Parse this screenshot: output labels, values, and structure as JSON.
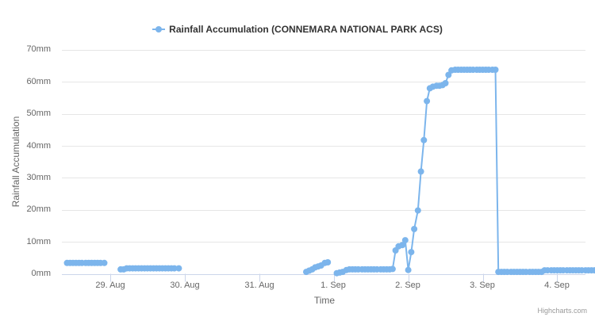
{
  "legend": {
    "label": "Rainfall Accumulation (CONNEMARA NATIONAL PARK ACS)",
    "color": "#7cb5ec"
  },
  "y_axis": {
    "title": "Rainfall Accumulation",
    "ticks": [
      "0mm",
      "10mm",
      "20mm",
      "30mm",
      "40mm",
      "50mm",
      "60mm",
      "70mm"
    ]
  },
  "x_axis": {
    "title": "Time",
    "ticks": [
      "29. Aug",
      "30. Aug",
      "31. Aug",
      "1. Sep",
      "2. Sep",
      "3. Sep",
      "4. Sep"
    ]
  },
  "credits": "Highcharts.com",
  "chart_data": {
    "type": "line",
    "title": "",
    "xlabel": "Time",
    "ylabel": "Rainfall Accumulation",
    "ylim": [
      0,
      70
    ],
    "y_unit": "mm",
    "grid": true,
    "legend_position": "top",
    "x_tick_labels": [
      "29. Aug",
      "30. Aug",
      "31. Aug",
      "1. Sep",
      "2. Sep",
      "3. Sep",
      "4. Sep"
    ],
    "series": [
      {
        "name": "Rainfall Accumulation (CONNEMARA NATIONAL PARK ACS)",
        "color": "#7cb5ec",
        "segments": [
          {
            "x_days": [
              -0.58,
              -0.54,
              -0.5,
              -0.46,
              -0.42,
              -0.38,
              -0.33,
              -0.29,
              -0.25,
              -0.21,
              -0.17,
              -0.13,
              -0.08
            ],
            "values": [
              3.4,
              3.4,
              3.4,
              3.4,
              3.4,
              3.4,
              3.4,
              3.4,
              3.4,
              3.4,
              3.4,
              3.4,
              3.4
            ]
          },
          {
            "x_days": [
              0.14,
              0.18,
              0.22,
              0.26,
              0.3,
              0.34,
              0.38,
              0.42,
              0.46,
              0.5,
              0.54,
              0.58,
              0.62,
              0.66,
              0.7,
              0.74,
              0.78,
              0.82,
              0.86,
              0.92
            ],
            "values": [
              1.4,
              1.4,
              1.7,
              1.7,
              1.7,
              1.7,
              1.7,
              1.7,
              1.7,
              1.7,
              1.7,
              1.7,
              1.7,
              1.7,
              1.7,
              1.7,
              1.7,
              1.7,
              1.7,
              1.7
            ]
          },
          {
            "x_days": [
              2.63,
              2.67,
              2.71,
              2.75,
              2.79,
              2.83,
              2.88,
              2.92
            ],
            "values": [
              0.6,
              1.0,
              1.4,
              2.0,
              2.3,
              2.6,
              3.4,
              3.6
            ]
          },
          {
            "x_days": [
              3.04,
              3.08,
              3.12,
              3.17,
              3.21,
              3.25,
              3.29,
              3.33,
              3.38,
              3.42,
              3.46,
              3.5,
              3.54,
              3.58,
              3.63,
              3.67,
              3.71,
              3.75,
              3.79,
              3.83,
              3.87,
              3.92,
              3.96,
              4.0,
              4.04,
              4.08,
              4.13,
              4.17,
              4.21,
              4.25,
              4.29,
              4.33,
              4.38,
              4.42,
              4.46,
              4.5,
              4.54,
              4.58,
              4.63,
              4.67,
              4.71,
              4.75,
              4.79,
              4.83,
              4.87,
              4.92,
              4.96,
              5.0,
              5.04,
              5.08,
              5.13,
              5.17,
              5.21,
              5.25,
              5.29,
              5.33,
              5.38,
              5.42,
              5.46,
              5.5,
              5.54,
              5.58,
              5.63,
              5.67,
              5.71,
              5.75,
              5.79,
              5.83,
              5.87,
              5.92,
              5.96,
              6.0,
              6.04,
              6.08,
              6.13,
              6.17,
              6.21,
              6.25,
              6.29,
              6.33,
              6.38,
              6.42,
              6.46,
              6.5,
              6.54,
              6.58,
              6.63,
              6.67,
              6.71,
              6.75,
              6.79,
              6.83,
              6.87,
              6.92,
              6.96
            ],
            "values": [
              0.2,
              0.4,
              0.6,
              1.2,
              1.4,
              1.4,
              1.4,
              1.4,
              1.4,
              1.4,
              1.4,
              1.4,
              1.4,
              1.4,
              1.4,
              1.4,
              1.4,
              1.4,
              1.5,
              7.3,
              8.6,
              9.0,
              10.5,
              1.2,
              6.8,
              14.0,
              19.8,
              32.0,
              41.8,
              54.0,
              58.0,
              58.5,
              58.8,
              58.8,
              59.0,
              59.6,
              62.2,
              63.6,
              63.8,
              63.8,
              63.8,
              63.8,
              63.8,
              63.8,
              63.8,
              63.8,
              63.8,
              63.8,
              63.8,
              63.8,
              63.8,
              63.8,
              0.6,
              0.6,
              0.6,
              0.6,
              0.6,
              0.6,
              0.6,
              0.6,
              0.6,
              0.6,
              0.6,
              0.6,
              0.6,
              0.6,
              0.6,
              1.1,
              1.1,
              1.1,
              1.1,
              1.1,
              1.1,
              1.1,
              1.1,
              1.1,
              1.1,
              1.1,
              1.1,
              1.1,
              1.1,
              1.1,
              1.1,
              1.1,
              1.1,
              1.1,
              1.1,
              1.1,
              1.1,
              1.1,
              1.1,
              1.1,
              1.1,
              1.1,
              1.1
            ]
          },
          {
            "x_days": [
              7.27,
              7.31,
              7.33
            ],
            "values": [
              0.3,
              0.3,
              0.3
            ]
          }
        ]
      }
    ]
  }
}
